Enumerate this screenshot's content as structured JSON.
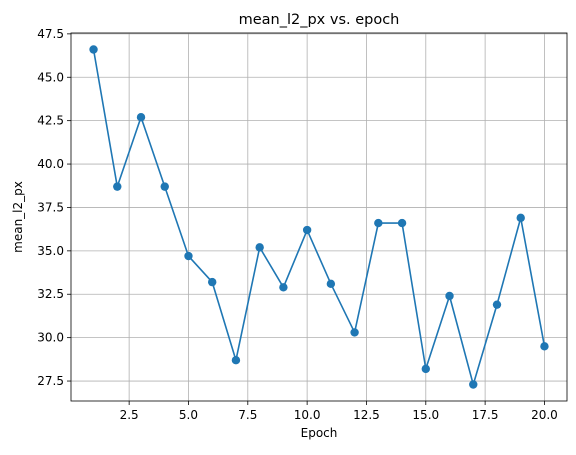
{
  "chart_data": {
    "type": "line",
    "title": "mean_l2_px vs. epoch",
    "xlabel": "Epoch",
    "ylabel": "mean_l2_px",
    "x": [
      1,
      2,
      3,
      4,
      5,
      6,
      7,
      8,
      9,
      10,
      11,
      12,
      13,
      14,
      15,
      16,
      17,
      18,
      19,
      20
    ],
    "series": [
      {
        "values": [
          46.6,
          38.7,
          42.7,
          38.7,
          34.7,
          33.2,
          28.7,
          35.2,
          32.9,
          36.2,
          33.1,
          30.3,
          36.6,
          36.6,
          28.2,
          32.4,
          27.3,
          31.9,
          36.9,
          29.5
        ],
        "color": "#1f77b4",
        "marker": "circle"
      }
    ],
    "xlim": [
      0.05,
      20.95
    ],
    "ylim": [
      26.35,
      47.55
    ],
    "xticks": [
      2.5,
      5.0,
      7.5,
      10.0,
      12.5,
      15.0,
      17.5,
      20.0
    ],
    "xtick_labels": [
      "2.5",
      "5.0",
      "7.5",
      "10.0",
      "12.5",
      "15.0",
      "17.5",
      "20.0"
    ],
    "yticks": [
      27.5,
      30.0,
      32.5,
      35.0,
      37.5,
      40.0,
      42.5,
      45.0,
      47.5
    ],
    "ytick_labels": [
      "27.5",
      "30.0",
      "32.5",
      "35.0",
      "37.5",
      "40.0",
      "42.5",
      "45.0",
      "47.5"
    ],
    "grid": true,
    "legend": "none"
  }
}
